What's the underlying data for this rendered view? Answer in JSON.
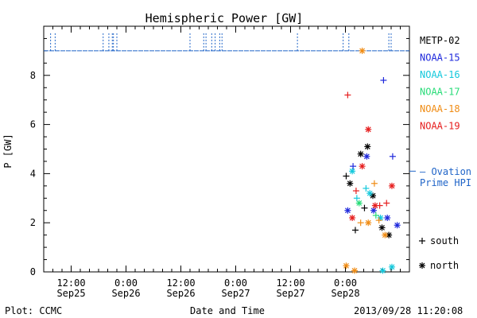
{
  "chart_data": {
    "type": "scatter",
    "title": "Hemispheric Power [GW]",
    "xlabel": "Date and Time",
    "ylabel": "P [GW]",
    "ylim": [
      0,
      10
    ],
    "y_ticks": [
      0,
      2,
      4,
      6,
      8
    ],
    "x_range": [
      "2013-09-25T06:00",
      "2013-09-28T14:00"
    ],
    "x_ticks": [
      {
        "t": "2013-09-25T12:00",
        "line1": "12:00",
        "line2": "Sep25"
      },
      {
        "t": "2013-09-26T00:00",
        "line1": "0:00",
        "line2": "Sep26"
      },
      {
        "t": "2013-09-26T12:00",
        "line1": "12:00",
        "line2": "Sep26"
      },
      {
        "t": "2013-09-27T00:00",
        "line1": "0:00",
        "line2": "Sep27"
      },
      {
        "t": "2013-09-27T12:00",
        "line1": "12:00",
        "line2": "Sep27"
      },
      {
        "t": "2013-09-28T00:00",
        "line1": "0:00",
        "line2": "Sep28"
      }
    ],
    "ovation_series": {
      "name": "Ovation Prime HPI",
      "label_line1": "— Ovation",
      "label_line2": "Prime HPI",
      "color": "#1f64c8",
      "level": 9.0,
      "spike_level": 9.75,
      "spikes": [
        "2013-09-25T07:30",
        "2013-09-25T08:30",
        "2013-09-25T19:00",
        "2013-09-25T20:15",
        "2013-09-25T21:00",
        "2013-09-25T21:15",
        "2013-09-25T22:00",
        "2013-09-26T14:00",
        "2013-09-26T17:00",
        "2013-09-26T17:30",
        "2013-09-26T18:45",
        "2013-09-26T19:30",
        "2013-09-26T20:30",
        "2013-09-26T21:00",
        "2013-09-27T13:30",
        "2013-09-27T23:30",
        "2013-09-28T00:45",
        "2013-09-28T09:30",
        "2013-09-28T10:00"
      ]
    },
    "series": [
      {
        "name": "METP-02",
        "color": "#000000",
        "points": [
          {
            "t": "2013-09-28T00:10",
            "v": 3.9,
            "h": "south"
          },
          {
            "t": "2013-09-28T01:00",
            "v": 3.6,
            "h": "north"
          },
          {
            "t": "2013-09-28T02:10",
            "v": 1.7,
            "h": "south"
          },
          {
            "t": "2013-09-28T03:20",
            "v": 4.8,
            "h": "north"
          },
          {
            "t": "2013-09-28T04:10",
            "v": 2.6,
            "h": "south"
          },
          {
            "t": "2013-09-28T04:50",
            "v": 5.1,
            "h": "north"
          },
          {
            "t": "2013-09-28T06:00",
            "v": 3.1,
            "h": "north"
          },
          {
            "t": "2013-09-28T08:00",
            "v": 1.8,
            "h": "north"
          },
          {
            "t": "2013-09-28T09:30",
            "v": 1.5,
            "h": "north"
          }
        ]
      },
      {
        "name": "NOAA-15",
        "color": "#1e28dc",
        "points": [
          {
            "t": "2013-09-28T00:30",
            "v": 2.5,
            "h": "north"
          },
          {
            "t": "2013-09-28T01:40",
            "v": 4.3,
            "h": "south"
          },
          {
            "t": "2013-09-28T04:40",
            "v": 4.7,
            "h": "north"
          },
          {
            "t": "2013-09-28T06:10",
            "v": 2.5,
            "h": "north"
          },
          {
            "t": "2013-09-28T08:20",
            "v": 7.8,
            "h": "south"
          },
          {
            "t": "2013-09-28T09:10",
            "v": 2.2,
            "h": "north"
          },
          {
            "t": "2013-09-28T10:20",
            "v": 4.7,
            "h": "south"
          },
          {
            "t": "2013-09-28T11:20",
            "v": 1.9,
            "h": "north"
          }
        ]
      },
      {
        "name": "NOAA-16",
        "color": "#14c8dc",
        "points": [
          {
            "t": "2013-09-28T01:30",
            "v": 4.1,
            "h": "north"
          },
          {
            "t": "2013-09-28T02:30",
            "v": 3.0,
            "h": "south"
          },
          {
            "t": "2013-09-28T04:30",
            "v": 3.4,
            "h": "south"
          },
          {
            "t": "2013-09-28T05:20",
            "v": 3.2,
            "h": "north"
          },
          {
            "t": "2013-09-28T07:40",
            "v": 2.2,
            "h": "north"
          },
          {
            "t": "2013-09-28T08:10",
            "v": 0.05,
            "h": "north"
          },
          {
            "t": "2013-09-28T10:10",
            "v": 0.2,
            "h": "north"
          }
        ]
      },
      {
        "name": "NOAA-17",
        "color": "#28dc78",
        "points": [
          {
            "t": "2013-09-28T03:00",
            "v": 2.8,
            "h": "north"
          },
          {
            "t": "2013-09-28T06:40",
            "v": 2.3,
            "h": "south"
          }
        ]
      },
      {
        "name": "NOAA-18",
        "color": "#f08c14",
        "points": [
          {
            "t": "2013-09-28T00:10",
            "v": 0.25,
            "h": "north"
          },
          {
            "t": "2013-09-28T02:00",
            "v": 0.05,
            "h": "north"
          },
          {
            "t": "2013-09-28T03:20",
            "v": 2.0,
            "h": "south"
          },
          {
            "t": "2013-09-28T03:40",
            "v": 9.0,
            "h": "north"
          },
          {
            "t": "2013-09-28T05:00",
            "v": 2.0,
            "h": "north"
          },
          {
            "t": "2013-09-28T06:20",
            "v": 3.6,
            "h": "south"
          },
          {
            "t": "2013-09-28T07:20",
            "v": 2.1,
            "h": "south"
          },
          {
            "t": "2013-09-28T08:40",
            "v": 1.5,
            "h": "north"
          }
        ]
      },
      {
        "name": "NOAA-19",
        "color": "#e61e1e",
        "points": [
          {
            "t": "2013-09-28T00:30",
            "v": 7.2,
            "h": "south"
          },
          {
            "t": "2013-09-28T01:30",
            "v": 2.2,
            "h": "north"
          },
          {
            "t": "2013-09-28T02:20",
            "v": 3.3,
            "h": "south"
          },
          {
            "t": "2013-09-28T03:40",
            "v": 4.3,
            "h": "north"
          },
          {
            "t": "2013-09-28T05:00",
            "v": 5.8,
            "h": "north"
          },
          {
            "t": "2013-09-28T06:30",
            "v": 2.7,
            "h": "north"
          },
          {
            "t": "2013-09-28T07:30",
            "v": 2.7,
            "h": "south"
          },
          {
            "t": "2013-09-28T09:00",
            "v": 2.8,
            "h": "south"
          },
          {
            "t": "2013-09-28T10:10",
            "v": 3.5,
            "h": "north"
          }
        ]
      }
    ],
    "marker_legend": [
      {
        "symbol": "+",
        "label": "south"
      },
      {
        "symbol": "*",
        "label": "north"
      }
    ]
  },
  "footer": {
    "plot_credit": "Plot: CCMC",
    "timestamp": "2013/09/28 11:20:08"
  }
}
